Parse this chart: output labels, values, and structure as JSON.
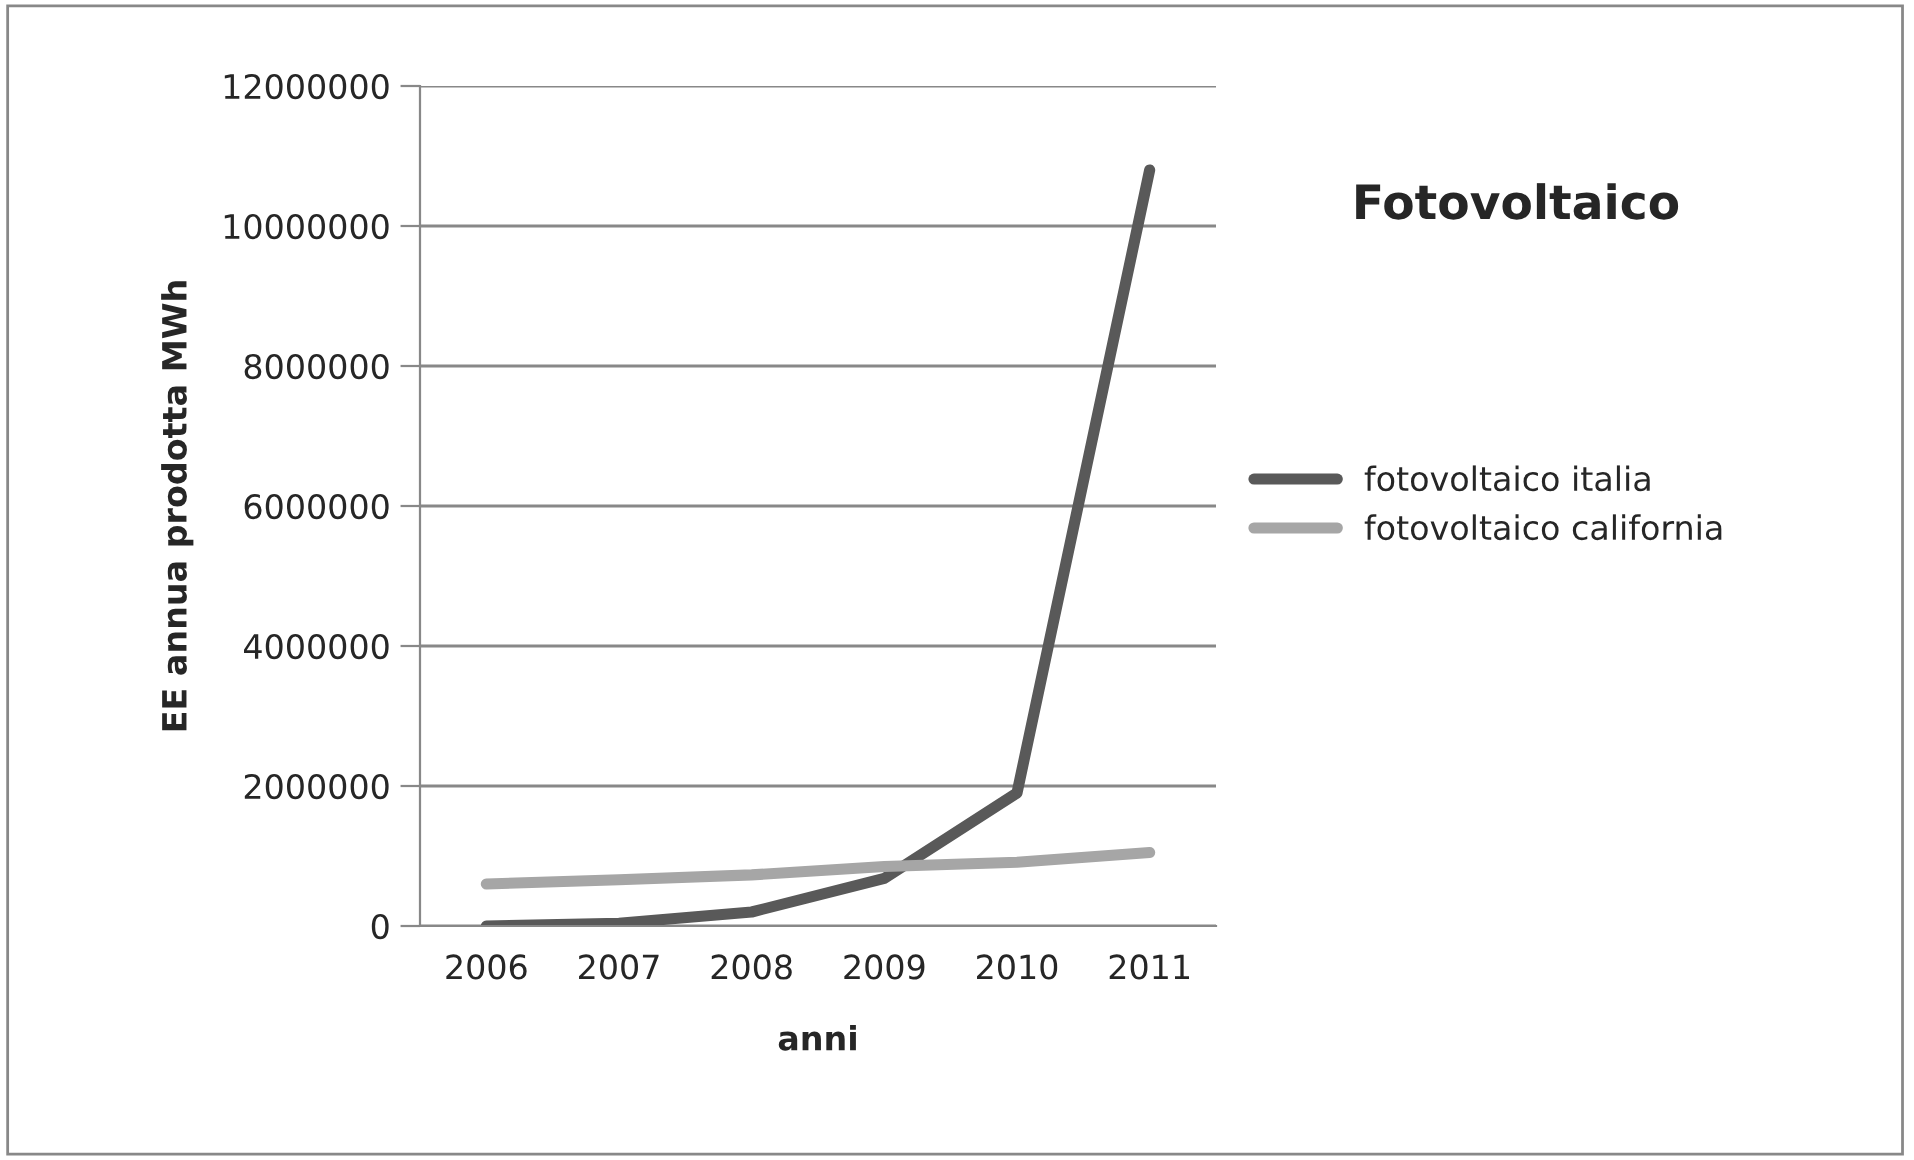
{
  "chart_data": {
    "type": "line",
    "title": "Fotovoltaico",
    "xlabel": "anni",
    "ylabel": "EE annua prodotta MWh",
    "categories": [
      "2006",
      "2007",
      "2008",
      "2009",
      "2010",
      "2011"
    ],
    "series": [
      {
        "name": "fotovoltaico italia",
        "color": "#595959",
        "values": [
          0,
          40000,
          200000,
          680000,
          1900000,
          10800000
        ]
      },
      {
        "name": "fotovoltaico california",
        "color": "#a6a6a6",
        "values": [
          600000,
          660000,
          730000,
          850000,
          910000,
          1050000
        ]
      }
    ],
    "ylim": [
      0,
      12000000
    ],
    "yticks": [
      0,
      2000000,
      4000000,
      6000000,
      8000000,
      10000000,
      12000000
    ],
    "grid": "y",
    "legend": "right",
    "marker": "none",
    "line_style": "solid"
  }
}
